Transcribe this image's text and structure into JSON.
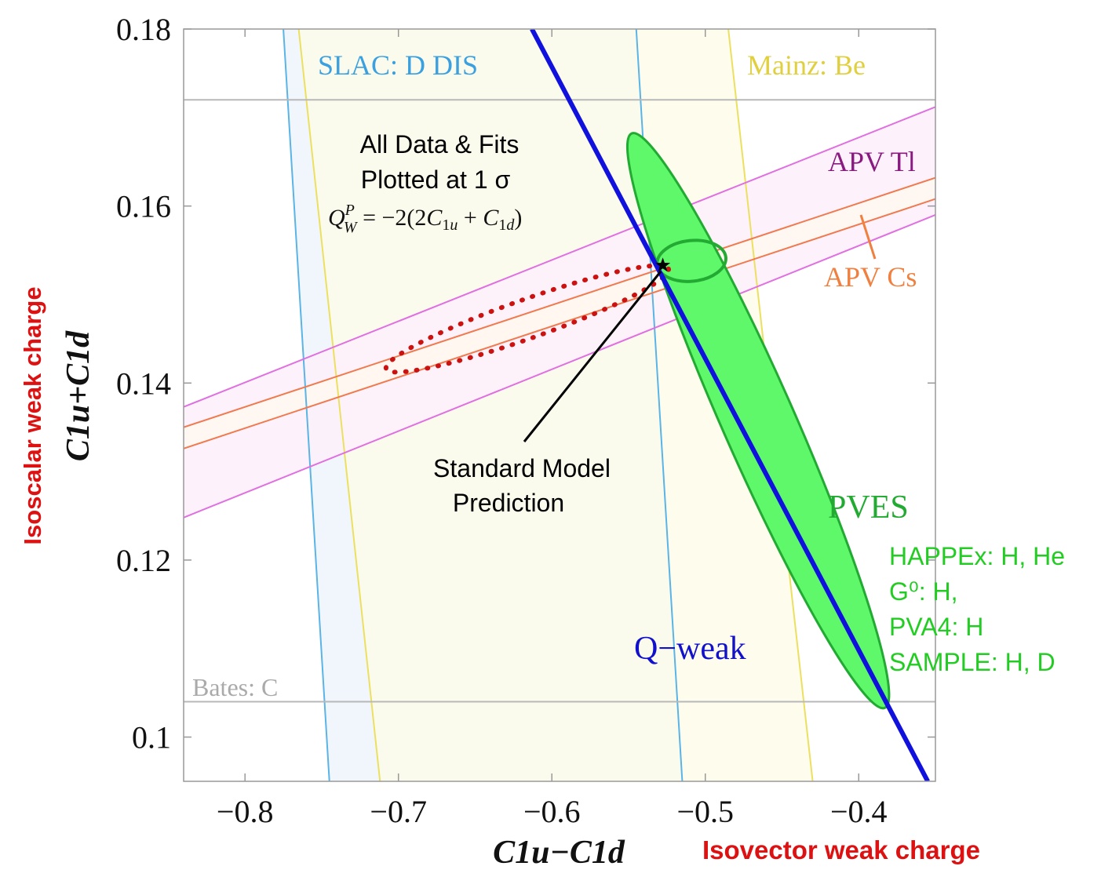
{
  "chart_data": {
    "type": "scatter",
    "xlabel": "C1u−C1d",
    "ylabel": "C1u+C1d",
    "x_caption": "Isovector weak charge",
    "y_caption": "Isoscalar weak charge",
    "xlim": [
      -0.84,
      -0.35
    ],
    "ylim": [
      0.095,
      0.18
    ],
    "x_ticks": [
      -0.8,
      -0.7,
      -0.6,
      -0.5,
      -0.4
    ],
    "x_tick_labels": [
      "−0.8",
      "−0.7",
      "−0.6",
      "−0.5",
      "−0.4"
    ],
    "y_ticks": [
      0.1,
      0.12,
      0.14,
      0.16,
      0.18
    ],
    "y_tick_labels": [
      "0.1",
      "0.12",
      "0.14",
      "0.16",
      "0.18"
    ],
    "bands": [
      {
        "name": "SLAC: D DIS",
        "color": "#5ab4e6",
        "fill": "#eef5fb",
        "lines": [
          [
            [
              -0.775,
              0.18
            ],
            [
              -0.745,
              0.095
            ]
          ],
          [
            [
              -0.545,
              0.18
            ],
            [
              -0.515,
              0.095
            ]
          ]
        ]
      },
      {
        "name": "Mainz: Be",
        "color": "#ece060",
        "fill": "#fdfbea",
        "lines": [
          [
            [
              -0.765,
              0.18
            ],
            [
              -0.712,
              0.095
            ]
          ],
          [
            [
              -0.485,
              0.18
            ],
            [
              -0.43,
              0.095
            ]
          ]
        ]
      },
      {
        "name": "APV Tl",
        "color": "#e070e0",
        "fill": "#fdf0fa",
        "lines": [
          [
            [
              -0.84,
              0.1373
            ],
            [
              -0.35,
              0.1712
            ]
          ],
          [
            [
              -0.84,
              0.1248
            ],
            [
              -0.35,
              0.159
            ]
          ]
        ]
      },
      {
        "name": "APV Cs",
        "color": "#f07a50",
        "fill": "#fff8ee",
        "lines": [
          [
            [
              -0.84,
              0.135
            ],
            [
              -0.35,
              0.1632
            ]
          ],
          [
            [
              -0.84,
              0.1326
            ],
            [
              -0.35,
              0.1608
            ]
          ]
        ]
      },
      {
        "name": "Bates: C",
        "color": "#b8b8b8",
        "fill": "none",
        "lines": [
          [
            [
              -0.84,
              0.172
            ],
            [
              -0.35,
              0.172
            ]
          ],
          [
            [
              -0.84,
              0.104
            ],
            [
              -0.35,
              0.104
            ]
          ]
        ]
      }
    ],
    "qweak_line": {
      "name": "Q−weak",
      "color": "#1111dd",
      "points": [
        [
          -0.613,
          0.18
        ],
        [
          -0.355,
          0.095
        ]
      ]
    },
    "pves_ellipse": {
      "name": "PVES",
      "color": "#22aa33",
      "fill": "#5ff86a",
      "ends": [
        [
          -0.548,
          0.1682
        ],
        [
          -0.383,
          0.1033
        ]
      ],
      "minor_half_y": 0.0041
    },
    "combined_fit": {
      "color": "#22aa33",
      "center": [
        -0.509,
        0.1538
      ],
      "rx": 0.0225,
      "ry": 0.0023,
      "tilt_deg": -6
    },
    "all_data_fit": {
      "color": "#cc1111",
      "ends": [
        [
          -0.708,
          0.1416
        ],
        [
          -0.524,
          0.1529
        ]
      ],
      "minor_half_y": 0.0022
    },
    "standard_model": {
      "point": [
        -0.5277,
        0.1533
      ],
      "color": "#000000"
    },
    "annotations": {
      "slac": "SLAC: D DIS",
      "mainz": "Mainz: Be",
      "apv_tl": "APV Tl",
      "apv_cs": "APV Cs",
      "bates": "Bates: C",
      "qweak": "Q−weak",
      "pves": "PVES",
      "all_data_line1": "All Data & Fits",
      "all_data_line2": "Plotted at 1 σ",
      "formula": "Q_W^P = −2(2C_1u + C_1d)",
      "sm_line1": "Standard Model",
      "sm_line2": "Prediction",
      "pves_experiments": [
        "HAPPEx: H, He",
        "G⁰: H,",
        "PVA4: H",
        "SAMPLE: H, D"
      ]
    }
  }
}
